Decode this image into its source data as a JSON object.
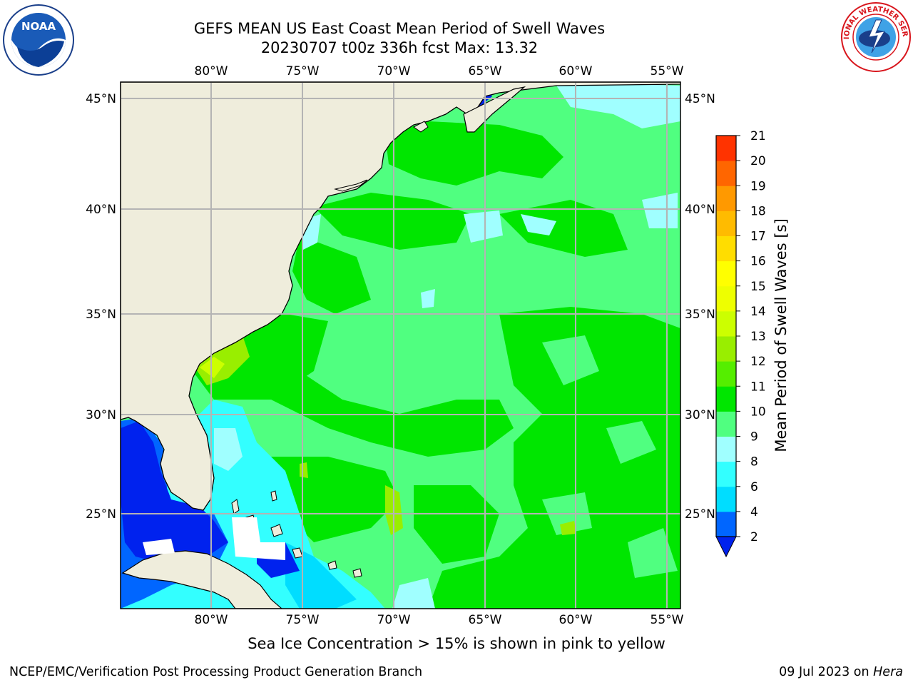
{
  "title": {
    "line1": "GEFS MEAN US East Coast Mean Period of Swell Waves",
    "line2": "20230707 t00z 336h fcst   Max: 13.32"
  },
  "map": {
    "lon_labels": [
      "80°W",
      "75°W",
      "70°W",
      "65°W",
      "60°W",
      "55°W"
    ],
    "lat_labels": [
      "45°N",
      "40°N",
      "35°N",
      "30°N",
      "25°N"
    ],
    "colors": {
      "land": "#efeddc",
      "grid": "#b4b4b4",
      "coast": "#000000"
    }
  },
  "colorbar": {
    "label": "Mean Period of Swell Waves [s]",
    "ticks": [
      "2",
      "4",
      "6",
      "8",
      "9",
      "10",
      "11",
      "12",
      "13",
      "14",
      "15",
      "16",
      "17",
      "18",
      "19",
      "20",
      "21"
    ],
    "colors": [
      "#0066ff",
      "#00ddff",
      "#33ffff",
      "#a0ffff",
      "#50ff80",
      "#00e600",
      "#55ee00",
      "#99ee00",
      "#ccff00",
      "#eeff00",
      "#ffff00",
      "#ffdd00",
      "#ffbb00",
      "#ff9900",
      "#ff6600",
      "#ff3300",
      "#ff0000"
    ],
    "extend_color": "#0022ee"
  },
  "caption": "Sea Ice Concentration > 15% is shown in pink to yellow",
  "footer": {
    "left": "NCEP/EMC/Verification Post Processing Product Generation Branch",
    "date": "09 Jul 2023 on ",
    "machine": "Hera"
  },
  "logos": {
    "noaa": "NOAA",
    "nws": "NATIONAL WEATHER SERVICE"
  }
}
